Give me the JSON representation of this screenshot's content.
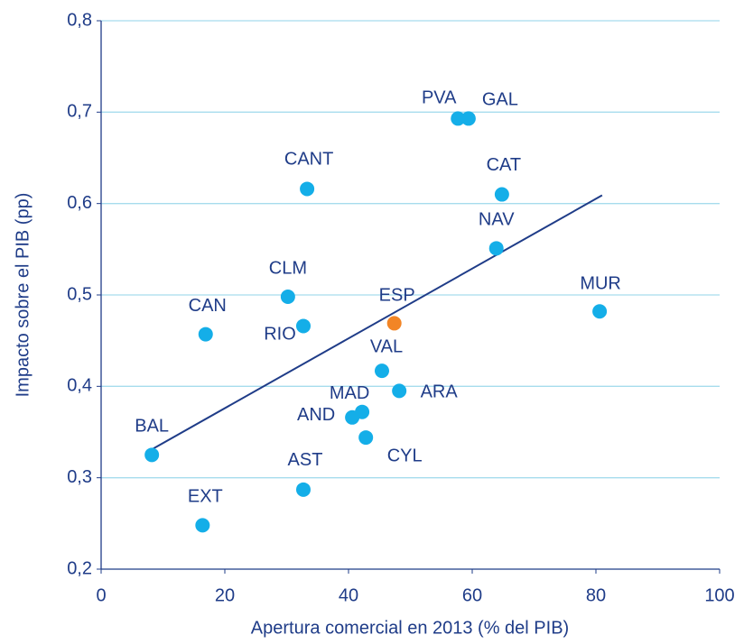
{
  "chart_data": {
    "type": "scatter",
    "xlabel": "Apertura comercial en 2013 (% del PIB)",
    "ylabel": "Impacto sobre el PIB (pp)",
    "labels": [
      "BAL",
      "EXT",
      "CAN",
      "CLM",
      "RIO",
      "CANT",
      "AST",
      "AND",
      "MAD",
      "CYL",
      "VAL",
      "ESP",
      "ARA",
      "PVA",
      "GAL",
      "NAV",
      "CAT",
      "MUR"
    ],
    "x": [
      8.2,
      16.4,
      16.9,
      30.2,
      32.7,
      33.3,
      32.7,
      40.6,
      42.2,
      42.8,
      45.4,
      47.4,
      48.2,
      57.7,
      59.4,
      63.9,
      64.8,
      80.6
    ],
    "y": [
      0.325,
      0.248,
      0.457,
      0.498,
      0.466,
      0.616,
      0.287,
      0.366,
      0.372,
      0.344,
      0.417,
      0.469,
      0.395,
      0.693,
      0.693,
      0.551,
      0.61,
      0.482
    ],
    "colors": [
      "#14aee8",
      "#14aee8",
      "#14aee8",
      "#14aee8",
      "#14aee8",
      "#14aee8",
      "#14aee8",
      "#14aee8",
      "#14aee8",
      "#14aee8",
      "#14aee8",
      "#f28526",
      "#14aee8",
      "#14aee8",
      "#14aee8",
      "#14aee8",
      "#14aee8",
      "#14aee8"
    ],
    "trendline": {
      "x": [
        8.2,
        81.0
      ],
      "y": [
        0.331,
        0.609
      ],
      "color": "#1f3c88"
    },
    "xlim": [
      0,
      100
    ],
    "xticks": [
      0,
      20,
      40,
      60,
      80,
      100
    ],
    "ylim": [
      0.2,
      0.8
    ],
    "yticks": [
      {
        "value": 0.2,
        "label": "0,2"
      },
      {
        "value": 0.3,
        "label": "0,3"
      },
      {
        "value": 0.4,
        "label": "0,4"
      },
      {
        "value": 0.5,
        "label": "0,5"
      },
      {
        "value": 0.6,
        "label": "0,6"
      },
      {
        "value": 0.7,
        "label": "0,7"
      },
      {
        "value": 0.8,
        "label": "0,8"
      }
    ],
    "grid": true
  }
}
